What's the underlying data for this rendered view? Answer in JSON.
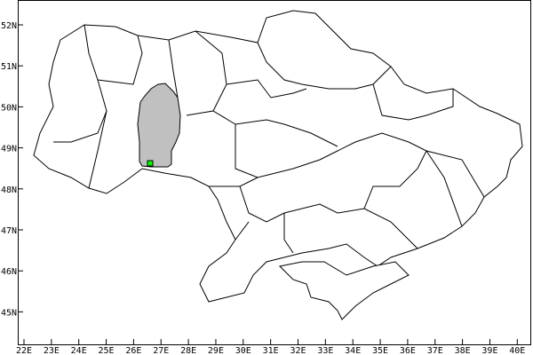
{
  "map": {
    "x_ticks": [
      "22E",
      "23E",
      "24E",
      "25E",
      "26E",
      "27E",
      "28E",
      "29E",
      "30E",
      "31E",
      "32E",
      "33E",
      "34E",
      "35E",
      "36E",
      "37E",
      "38E",
      "39E",
      "40E"
    ],
    "y_ticks": [
      "52N",
      "51N",
      "50N",
      "49N",
      "48N",
      "47N",
      "46N",
      "45N"
    ],
    "highlight_color": "#c0c0c0",
    "marker_color": "#00ff00",
    "border_color": "#000000"
  }
}
